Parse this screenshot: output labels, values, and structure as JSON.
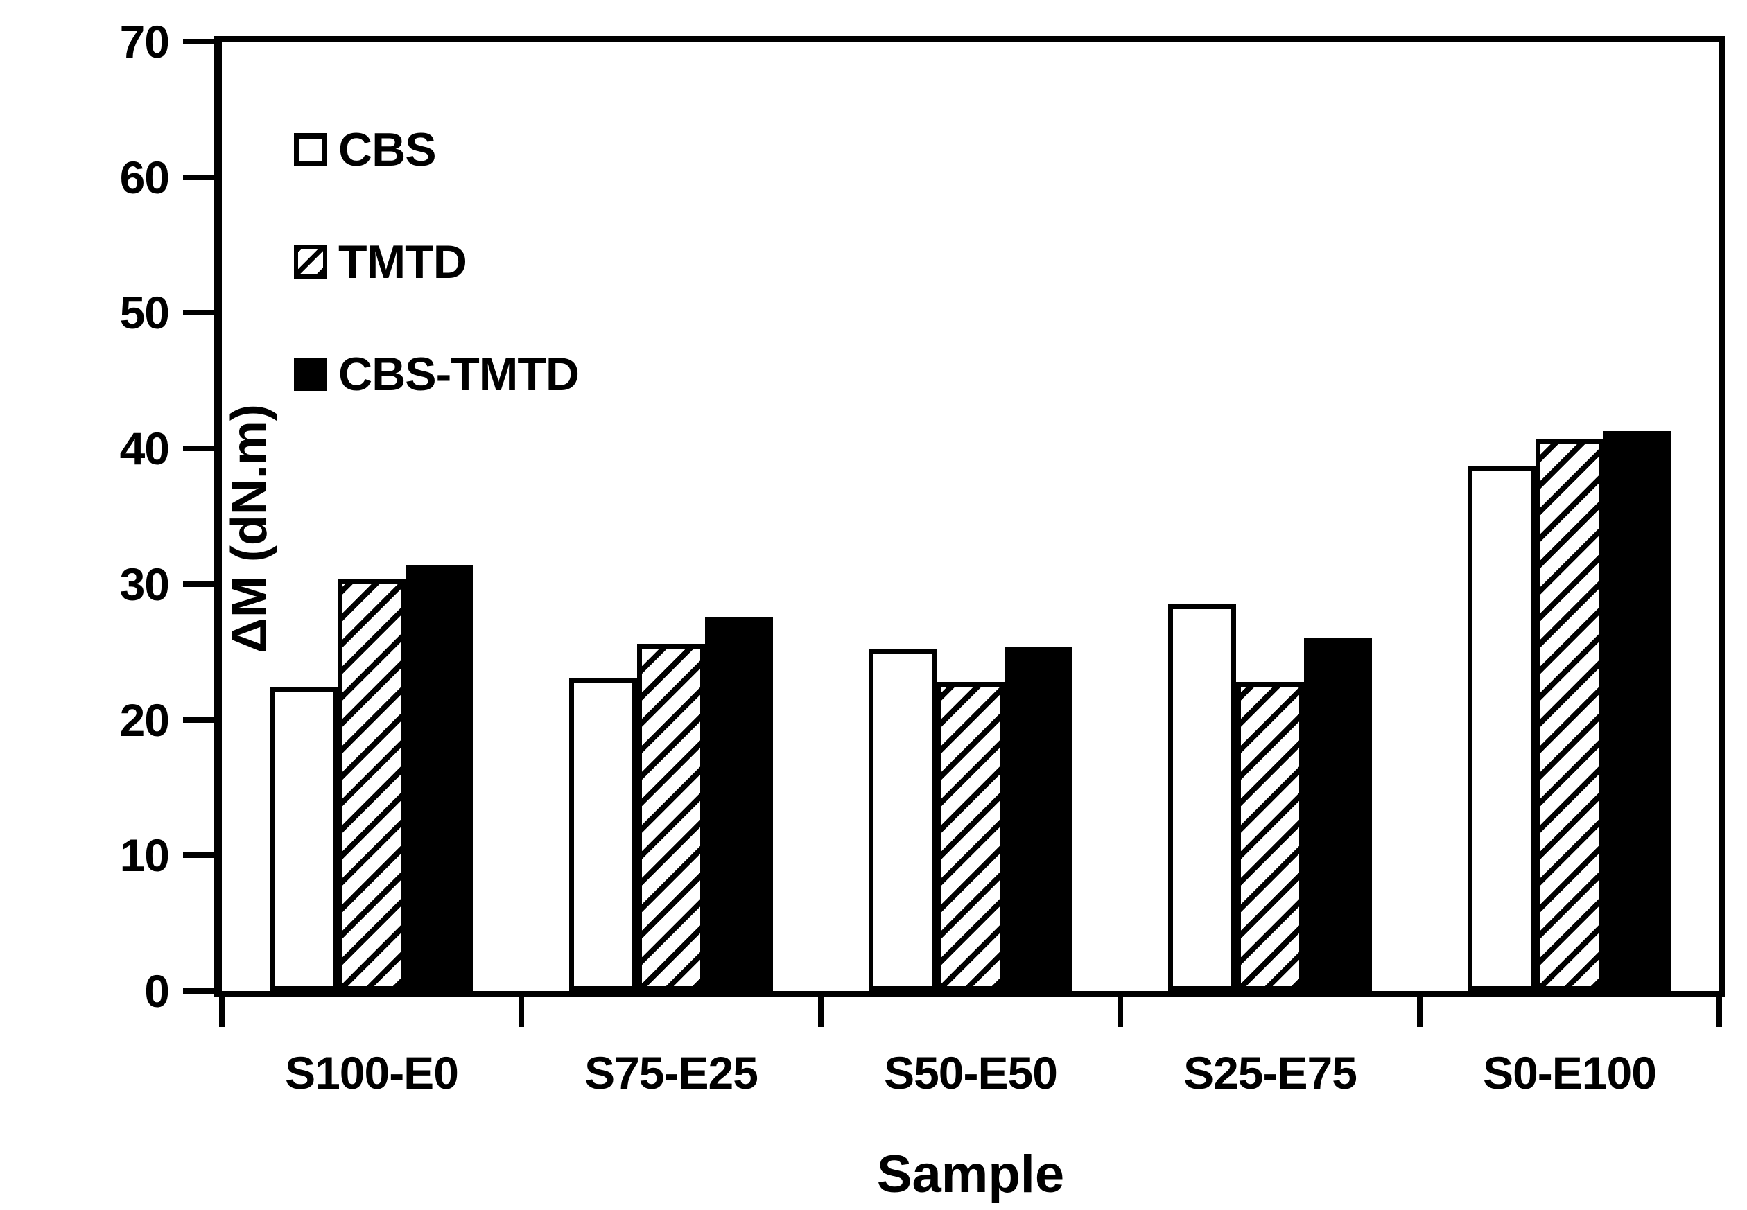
{
  "chart_data": {
    "type": "bar",
    "title": "",
    "xlabel": "Sample",
    "ylabel": "ΔM (dN.m)",
    "categories": [
      "S100-E0",
      "S75-E25",
      "S50-E50",
      "S25-E75",
      "S0-E100"
    ],
    "series": [
      {
        "name": "CBS",
        "style": "open",
        "values": [
          22.4,
          23.1,
          25.2,
          28.5,
          38.7
        ]
      },
      {
        "name": "TMTD",
        "style": "hatched",
        "values": [
          30.4,
          25.6,
          22.8,
          22.8,
          40.7
        ]
      },
      {
        "name": "CBS-TMTD",
        "style": "solid",
        "values": [
          31.4,
          27.6,
          25.4,
          26.0,
          41.3
        ]
      }
    ],
    "ylim": [
      0,
      70
    ],
    "yticks": [
      0,
      10,
      20,
      30,
      40,
      50,
      60,
      70
    ],
    "grid": false,
    "legend_position": "top-left",
    "colors": {
      "axis": "#000000",
      "text": "#000000",
      "bar_open_fill": "#ffffff",
      "bar_solid_fill": "#000000",
      "bar_border": "#000000",
      "background": "#ffffff"
    }
  }
}
